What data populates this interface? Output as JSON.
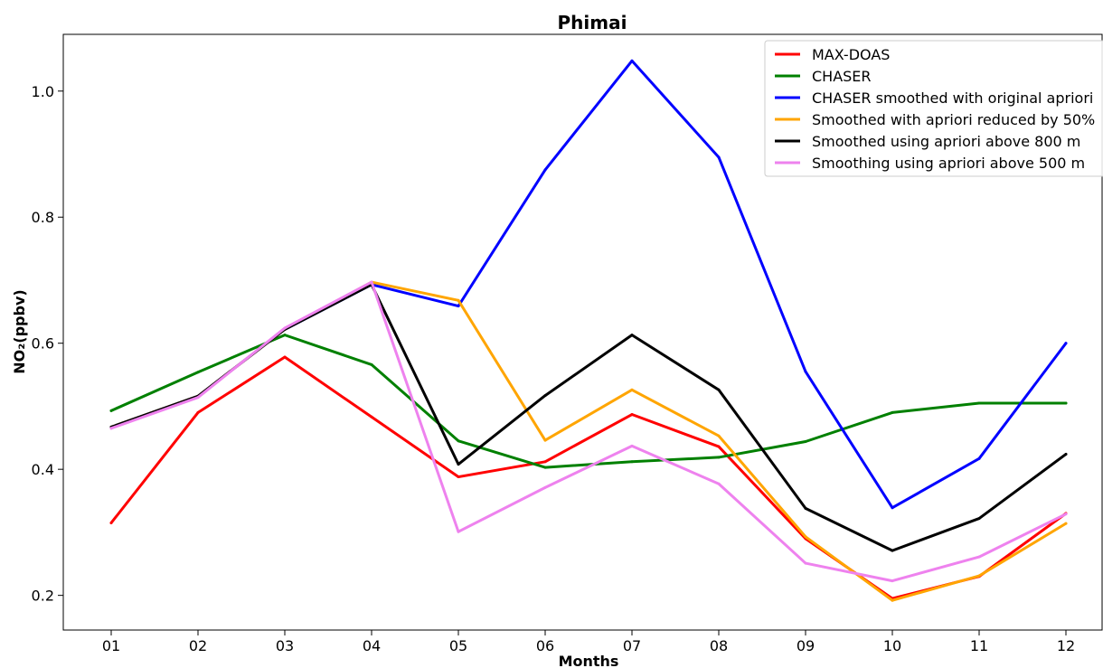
{
  "chart_data": {
    "type": "line",
    "title": "Phimai",
    "xlabel": "Months",
    "ylabel": "NO₂(ppbv)",
    "categories": [
      "01",
      "02",
      "03",
      "04",
      "05",
      "06",
      "07",
      "08",
      "09",
      "10",
      "11",
      "12"
    ],
    "ylim": [
      0.145,
      1.09
    ],
    "yticks": [
      0.2,
      0.4,
      0.6,
      0.8,
      1.0
    ],
    "ytick_labels": [
      "0.2",
      "0.4",
      "0.6",
      "0.8",
      "1.0"
    ],
    "grid": false,
    "legend_position": "top-right",
    "series": [
      {
        "name": "MAX-DOAS",
        "color": "#ff0000",
        "values": [
          0.315,
          0.49,
          0.578,
          0.483,
          0.388,
          0.412,
          0.487,
          0.436,
          0.29,
          0.195,
          0.23,
          0.33
        ]
      },
      {
        "name": "CHASER",
        "color": "#008000",
        "values": [
          0.493,
          0.554,
          0.613,
          0.566,
          0.445,
          0.403,
          0.412,
          0.419,
          0.444,
          0.49,
          0.505,
          0.505
        ]
      },
      {
        "name": "CHASER smoothed with original apriori",
        "color": "#0000ff",
        "values": [
          0.467,
          0.516,
          0.622,
          0.693,
          0.659,
          0.875,
          1.048,
          0.895,
          0.555,
          0.339,
          0.417,
          0.6
        ]
      },
      {
        "name": "Smoothed with apriori reduced by 50%",
        "color": "#ffa500",
        "values": [
          0.467,
          0.516,
          0.622,
          0.697,
          0.668,
          0.446,
          0.526,
          0.453,
          0.293,
          0.192,
          0.231,
          0.314
        ]
      },
      {
        "name": "Smoothed using apriori above 800 m",
        "color": "#000000",
        "values": [
          0.467,
          0.516,
          0.622,
          0.693,
          0.408,
          0.517,
          0.613,
          0.526,
          0.338,
          0.271,
          0.322,
          0.424
        ]
      },
      {
        "name": "Smoothing using apriori above 500 m",
        "color": "#ee82ee",
        "values": [
          0.465,
          0.514,
          0.624,
          0.697,
          0.301,
          0.371,
          0.437,
          0.377,
          0.251,
          0.223,
          0.261,
          0.329
        ]
      }
    ]
  }
}
